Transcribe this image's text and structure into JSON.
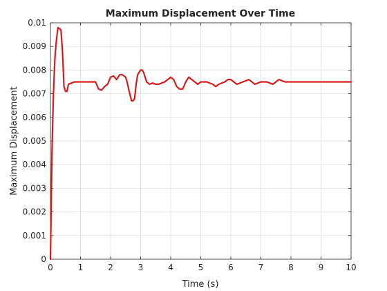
{
  "chart_data": {
    "type": "line",
    "title": "Maximum Displacement Over Time",
    "xlabel": "Time (s)",
    "ylabel": "Maximum Displacement",
    "xlim": [
      0,
      10
    ],
    "ylim": [
      0,
      0.01
    ],
    "xticks": [
      0,
      1,
      2,
      3,
      4,
      5,
      6,
      7,
      8,
      9,
      10
    ],
    "yticks": [
      0,
      0.001,
      0.002,
      0.003,
      0.004,
      0.005,
      0.006,
      0.007,
      0.008,
      0.009,
      0.01
    ],
    "xtick_labels": [
      "0",
      "1",
      "2",
      "3",
      "4",
      "5",
      "6",
      "7",
      "8",
      "9",
      "10"
    ],
    "ytick_labels": [
      "0",
      "0.001",
      "0.002",
      "0.003",
      "0.004",
      "0.005",
      "0.006",
      "0.007",
      "0.008",
      "0.009",
      "0.01"
    ],
    "grid": true,
    "series": [
      {
        "color": "#d7191c",
        "x": [
          0,
          0.05,
          0.1,
          0.15,
          0.2,
          0.25,
          0.3,
          0.35,
          0.4,
          0.45,
          0.5,
          0.55,
          0.6,
          0.7,
          0.8,
          0.9,
          1.0,
          1.2,
          1.4,
          1.5,
          1.6,
          1.7,
          1.8,
          1.9,
          2.0,
          2.1,
          2.2,
          2.3,
          2.4,
          2.5,
          2.55,
          2.6,
          2.7,
          2.75,
          2.8,
          2.85,
          2.9,
          3.0,
          3.05,
          3.1,
          3.15,
          3.2,
          3.3,
          3.4,
          3.5,
          3.6,
          3.8,
          3.9,
          4.0,
          4.1,
          4.2,
          4.3,
          4.4,
          4.5,
          4.6,
          4.7,
          4.8,
          4.9,
          5.0,
          5.2,
          5.4,
          5.5,
          5.6,
          5.8,
          5.9,
          6.0,
          6.2,
          6.4,
          6.6,
          6.8,
          7.0,
          7.2,
          7.4,
          7.6,
          7.8,
          8.0,
          8.2,
          8.4,
          8.6,
          8.8,
          9.0,
          9.2,
          9.4,
          9.6,
          9.8,
          10.0
        ],
        "y": [
          0,
          0.0045,
          0.007,
          0.0085,
          0.0093,
          0.0098,
          0.00975,
          0.0097,
          0.0088,
          0.0073,
          0.0071,
          0.0071,
          0.0074,
          0.00745,
          0.0075,
          0.0075,
          0.0075,
          0.0075,
          0.0075,
          0.0075,
          0.0072,
          0.00715,
          0.0073,
          0.0074,
          0.0077,
          0.00775,
          0.0076,
          0.0078,
          0.0078,
          0.0077,
          0.0075,
          0.0072,
          0.0067,
          0.0067,
          0.0068,
          0.0074,
          0.0078,
          0.008,
          0.008,
          0.0079,
          0.0077,
          0.0075,
          0.0074,
          0.00745,
          0.0074,
          0.0074,
          0.0075,
          0.0076,
          0.0077,
          0.0076,
          0.0073,
          0.0072,
          0.0072,
          0.0075,
          0.0077,
          0.0076,
          0.0075,
          0.0074,
          0.0075,
          0.0075,
          0.0074,
          0.0073,
          0.0074,
          0.0075,
          0.0076,
          0.0076,
          0.0074,
          0.0075,
          0.0076,
          0.0074,
          0.0075,
          0.0075,
          0.0074,
          0.0076,
          0.0075,
          0.0075,
          0.0075,
          0.0075,
          0.0075,
          0.0075,
          0.0075,
          0.0075,
          0.0075,
          0.0075,
          0.0075,
          0.0075
        ]
      }
    ]
  }
}
